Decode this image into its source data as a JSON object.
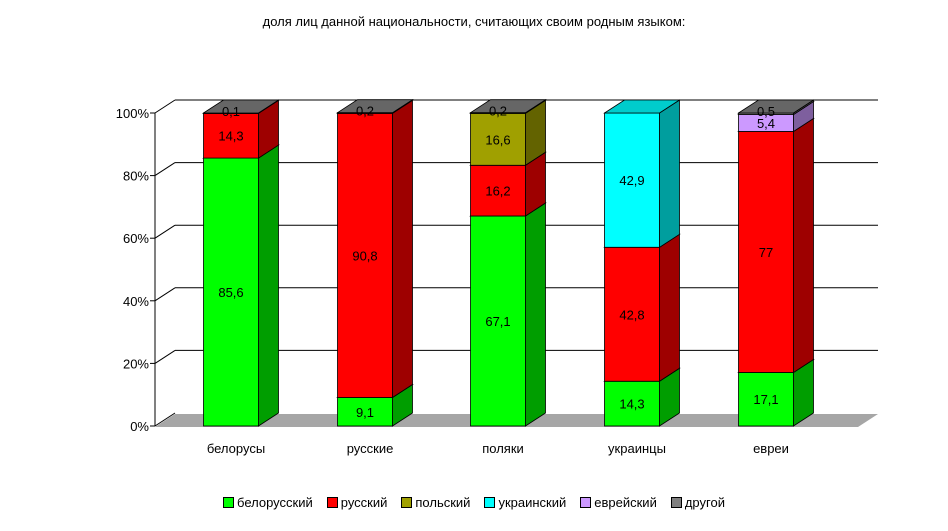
{
  "chart_data": {
    "type": "bar",
    "stacked": true,
    "title": "доля лиц данной национальности, считающих своим родным языком:",
    "xlabel": "",
    "ylabel": "",
    "ylim": [
      0,
      100
    ],
    "y_ticks": [
      "0%",
      "20%",
      "40%",
      "60%",
      "80%",
      "100%"
    ],
    "grid": true,
    "legend_position": "bottom",
    "categories": [
      "белорусы",
      "русские",
      "поляки",
      "украинцы",
      "евреи"
    ],
    "series": [
      {
        "name": "белорусский",
        "color": "#00ff00",
        "values": [
          85.6,
          9.1,
          67.1,
          14.3,
          17.1
        ],
        "labels": [
          "85,6",
          "9,1",
          "67,1",
          "14,3",
          "17,1"
        ]
      },
      {
        "name": "русский",
        "color": "#ff0000",
        "values": [
          14.3,
          90.8,
          16.2,
          42.8,
          77
        ],
        "labels": [
          "14,3",
          "90,8",
          "16,2",
          "42,8",
          "77"
        ]
      },
      {
        "name": "польский",
        "color": "#a0a000",
        "values": [
          0,
          0,
          16.6,
          0,
          0
        ],
        "labels": [
          "",
          "",
          "16,6",
          "",
          ""
        ]
      },
      {
        "name": "украинский",
        "color": "#00ffff",
        "values": [
          0,
          0,
          0,
          42.9,
          0
        ],
        "labels": [
          "",
          "",
          "",
          "42,9",
          ""
        ]
      },
      {
        "name": "еврейский",
        "color": "#cc99ff",
        "values": [
          0,
          0,
          0,
          0,
          5.4
        ],
        "labels": [
          "",
          "",
          "",
          "",
          "5,4"
        ]
      },
      {
        "name": "другой",
        "color": "#808080",
        "values": [
          0.1,
          0.2,
          0.2,
          0,
          0.5
        ],
        "labels": [
          "0,1",
          "0,2",
          "0,2",
          "",
          "0,5"
        ]
      }
    ]
  }
}
